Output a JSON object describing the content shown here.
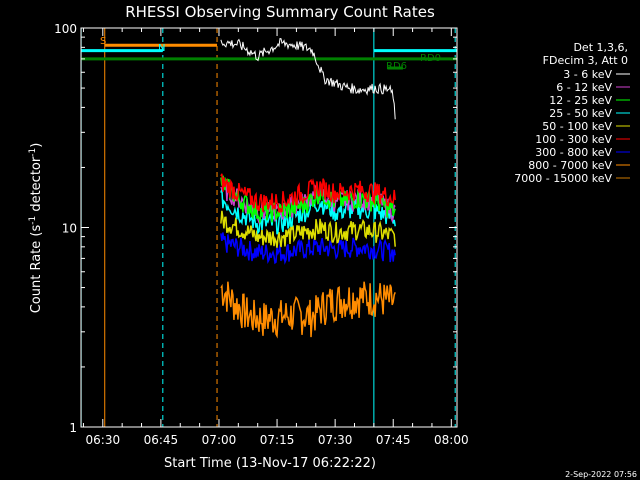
{
  "chart_data": {
    "type": "line",
    "title": "RHESSI Observing Summary Count Rates",
    "xlabel": "Start Time (13-Nov-17 06:22:22)",
    "ylabel_main": "Count Rate (s",
    "ylabel_sup1": "-1",
    "ylabel_mid": " detector",
    "ylabel_sup2": "-1",
    "ylabel_end": ")",
    "y_scale": "log",
    "ylim": [
      1,
      100
    ],
    "y_ticks": [
      {
        "value": 1,
        "label": "1"
      },
      {
        "value": 10,
        "label": "10"
      },
      {
        "value": 100,
        "label": "100"
      }
    ],
    "xlim_minutes": [
      384.37,
      481.47
    ],
    "x_ticks": [
      {
        "value": 390,
        "label": "06:30"
      },
      {
        "value": 405,
        "label": "06:45"
      },
      {
        "value": 420,
        "label": "07:00"
      },
      {
        "value": 435,
        "label": "07:15"
      },
      {
        "value": 450,
        "label": "07:30"
      },
      {
        "value": 465,
        "label": "07:45"
      },
      {
        "value": 480,
        "label": "08:00"
      }
    ],
    "legend_header": [
      "Det 1,3,6,",
      "FDecim 3, Att 0"
    ],
    "legend_placement": "right",
    "series": [
      {
        "name": "3 - 6 keV",
        "color": "#ffffff",
        "points": [
          [
            420.5,
            85
          ],
          [
            425,
            83
          ],
          [
            430,
            72
          ],
          [
            436,
            84
          ],
          [
            440,
            82
          ],
          [
            444,
            78
          ],
          [
            447,
            56
          ],
          [
            452,
            51
          ],
          [
            456,
            49
          ],
          [
            460,
            50
          ],
          [
            464,
            49
          ],
          [
            465,
            46
          ],
          [
            465.5,
            33
          ]
        ]
      },
      {
        "name": "6 - 12 keV",
        "color": "#d040d0",
        "points": [
          [
            420.5,
            16
          ],
          [
            425,
            14
          ],
          [
            430,
            12
          ],
          [
            436,
            12
          ],
          [
            442,
            13.5
          ],
          [
            446,
            15
          ],
          [
            450,
            13.5
          ],
          [
            456,
            14
          ],
          [
            461,
            13.5
          ],
          [
            465.5,
            12
          ]
        ]
      },
      {
        "name": "12 - 25 keV",
        "color": "#00ff00",
        "points": [
          [
            420.5,
            17
          ],
          [
            425,
            14
          ],
          [
            430,
            12
          ],
          [
            436,
            12
          ],
          [
            442,
            13
          ],
          [
            446,
            15
          ],
          [
            450,
            13.5
          ],
          [
            456,
            14
          ],
          [
            461,
            13.5
          ],
          [
            465.5,
            12
          ]
        ]
      },
      {
        "name": "25 - 50 keV",
        "color": "#00ffff",
        "points": [
          [
            420.5,
            14
          ],
          [
            425,
            12
          ],
          [
            430,
            10.5
          ],
          [
            436,
            10.5
          ],
          [
            442,
            12
          ],
          [
            446,
            13.5
          ],
          [
            450,
            12
          ],
          [
            456,
            12.5
          ],
          [
            461,
            12
          ],
          [
            465.5,
            11
          ]
        ]
      },
      {
        "name": "50 - 100 keV",
        "color": "#dddd00",
        "points": [
          [
            420.5,
            11
          ],
          [
            425,
            10
          ],
          [
            430,
            9
          ],
          [
            436,
            9
          ],
          [
            442,
            9.5
          ],
          [
            446,
            10
          ],
          [
            450,
            9.5
          ],
          [
            456,
            9.8
          ],
          [
            461,
            9.5
          ],
          [
            465.5,
            9
          ]
        ]
      },
      {
        "name": "100 - 300 keV",
        "color": "#ff0000",
        "points": [
          [
            420.5,
            17
          ],
          [
            425,
            15
          ],
          [
            430,
            13.5
          ],
          [
            436,
            13.5
          ],
          [
            442,
            15
          ],
          [
            446,
            16
          ],
          [
            450,
            15
          ],
          [
            456,
            15.5
          ],
          [
            461,
            15
          ],
          [
            465.5,
            14
          ]
        ]
      },
      {
        "name": "300 - 800 keV",
        "color": "#0000ff",
        "points": [
          [
            420.5,
            8.5
          ],
          [
            425,
            8
          ],
          [
            430,
            7.5
          ],
          [
            436,
            7.5
          ],
          [
            442,
            7.8
          ],
          [
            446,
            8
          ],
          [
            450,
            7.8
          ],
          [
            456,
            8
          ],
          [
            461,
            7.8
          ],
          [
            465.5,
            7.5
          ]
        ]
      },
      {
        "name": "800 - 7000 keV",
        "color": "#ff8c00",
        "points": [
          [
            420.5,
            5
          ],
          [
            424,
            4.2
          ],
          [
            428,
            3.6
          ],
          [
            432,
            3.5
          ],
          [
            436,
            3.6
          ],
          [
            440,
            3.7
          ],
          [
            444,
            3.6
          ],
          [
            448,
            4.2
          ],
          [
            452,
            4.4
          ],
          [
            456,
            4.5
          ],
          [
            461,
            4.5
          ],
          [
            465.5,
            4.2
          ]
        ]
      },
      {
        "name": "7000 - 15000 keV",
        "color": "#cc7700",
        "points": []
      }
    ],
    "annotations": {
      "s_label": "S",
      "n_label": "N",
      "rd6_label": "RD6",
      "rd0_label": "RD0"
    },
    "intervals": [
      {
        "label": "S",
        "color": "#ff8c00",
        "start": 390.5,
        "end": 419.5,
        "level": 82
      },
      {
        "label": "N",
        "color": "#00ffff",
        "start": 384.37,
        "end": 405.5,
        "level": 77
      },
      {
        "label": "N",
        "color": "#00ffff",
        "start": 460,
        "end": 481.47,
        "level": 77
      },
      {
        "label": "RD6",
        "color": "#008000",
        "start": 384.37,
        "end": 481.47,
        "level": 70
      },
      {
        "label": "RD0",
        "color": "#008000",
        "start": 463.5,
        "end": 467.5,
        "level": 63
      }
    ],
    "vlines": [
      {
        "x": 384.4,
        "color": "#00ffff",
        "style": "solid"
      },
      {
        "x": 390.5,
        "color": "#ff8c00",
        "style": "solid"
      },
      {
        "x": 405.5,
        "color": "#00ffff",
        "style": "dashed"
      },
      {
        "x": 419.5,
        "color": "#ff8c00",
        "style": "dashed"
      },
      {
        "x": 460,
        "color": "#00ffff",
        "style": "solid"
      },
      {
        "x": 481,
        "color": "#00ffff",
        "style": "dashed"
      }
    ]
  },
  "footer": {
    "timestamp": "2-Sep-2022 07:56"
  }
}
